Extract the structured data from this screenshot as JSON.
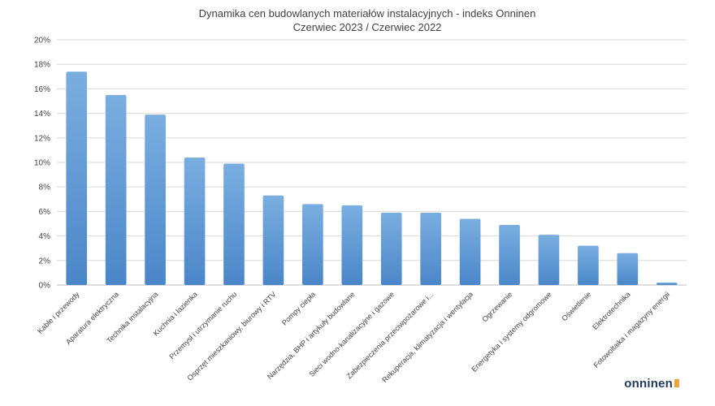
{
  "chart_data": {
    "type": "bar",
    "title": [
      "Dynamika cen budowlanych materiałów instalacyjnych - indeks Onninen",
      "Czerwiec 2023 / Czerwiec 2022"
    ],
    "xlabel": "",
    "ylabel": "",
    "ylim": [
      0,
      20
    ],
    "y_ticks": [
      "0%",
      "2%",
      "4%",
      "6%",
      "8%",
      "10%",
      "12%",
      "14%",
      "16%",
      "18%",
      "20%"
    ],
    "grid": true,
    "categories": [
      "Kable i przewody",
      "Aparatura elektryczna",
      "Technika instalacyjna",
      "Kuchnia i łazienka",
      "Przemysł i utrzymanie ruchu",
      "Osprzęt mieszkaniowy, biurowy i RTV",
      "Pompy ciepła",
      "Narzędzia, BHP i artykuły budowlane",
      "Sieci wodno-kanalizacyjne i gazowe",
      "Zabezpieczenia przeciwpożarowe i...",
      "Rekuperacja, klimatyzacja i wentylacja",
      "Ogrzewanie",
      "Energetyka i systemy odgromowe",
      "Oświetlenie",
      "Elektrotechnika",
      "Fotowoltaika i magazyny energii"
    ],
    "values": [
      17.4,
      15.5,
      13.9,
      10.4,
      9.9,
      7.3,
      6.6,
      6.5,
      5.9,
      5.9,
      5.4,
      4.9,
      4.1,
      3.2,
      2.6,
      0.2
    ],
    "colors": {
      "bar_top": "#7aaee0",
      "bar_bottom": "#4a86c8"
    }
  },
  "logo": {
    "text": "onninen"
  }
}
